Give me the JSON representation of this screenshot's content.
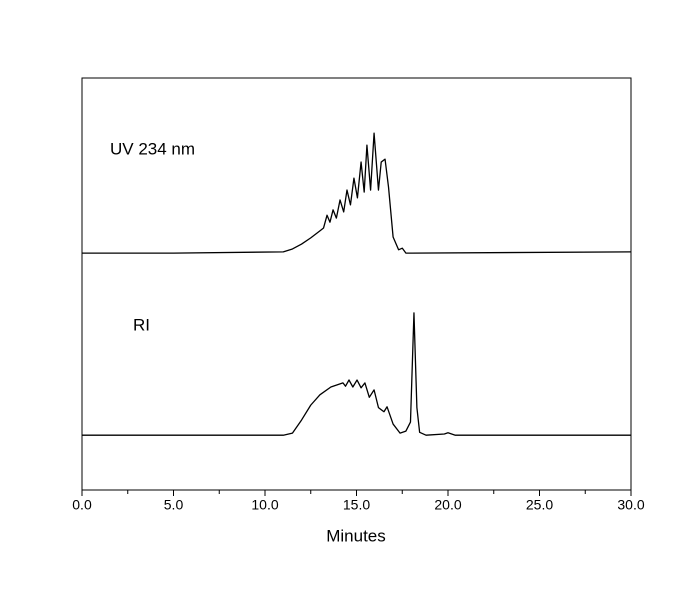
{
  "chart_data": {
    "type": "line",
    "xlabel": "Minutes",
    "xlim": [
      0,
      30
    ],
    "xticks": [
      {
        "value": 0,
        "label": "0.0"
      },
      {
        "value": 5,
        "label": "5.0"
      },
      {
        "value": 10,
        "label": "10.0"
      },
      {
        "value": 15,
        "label": "15.0"
      },
      {
        "value": 20,
        "label": "20.0"
      },
      {
        "value": 25,
        "label": "25.0"
      },
      {
        "value": 30,
        "label": "30.0"
      }
    ],
    "xminorticks": [
      2.5,
      7.5,
      12.5,
      17.5,
      22.5,
      27.5
    ],
    "ylim": [
      0,
      100
    ],
    "series": [
      {
        "name": "UV 234 nm",
        "color": "#000000",
        "x": [
          0,
          5,
          11,
          11.5,
          12,
          12.5,
          13,
          13.2,
          13.39,
          13.55,
          13.72,
          13.9,
          14.1,
          14.3,
          14.48,
          14.67,
          14.86,
          15.05,
          15.25,
          15.42,
          15.57,
          15.77,
          15.96,
          16.2,
          16.35,
          16.56,
          16.75,
          17.0,
          17.3,
          17.5,
          17.7,
          18,
          30
        ],
        "values": [
          57.5,
          57.5,
          57.8,
          58.5,
          59.7,
          61.2,
          62.9,
          63.6,
          66.7,
          65.0,
          68.0,
          66.0,
          70.4,
          67.5,
          72.8,
          69.2,
          75.7,
          70.9,
          79.6,
          72.3,
          83.7,
          72.8,
          86.6,
          72.8,
          79.6,
          80.3,
          73.5,
          61.4,
          58.3,
          58.7,
          57.5,
          57.5,
          57.8
        ]
      },
      {
        "name": "RI",
        "color": "#000000",
        "x": [
          0,
          11,
          11.5,
          12,
          12.5,
          13,
          13.6,
          14.26,
          14.4,
          14.59,
          14.8,
          15.03,
          15.25,
          15.46,
          15.7,
          15.96,
          16.2,
          16.5,
          16.67,
          17.0,
          17.38,
          17.7,
          17.95,
          18.14,
          18.3,
          18.45,
          18.8,
          19.8,
          20.0,
          20.4,
          30
        ],
        "values": [
          13.3,
          13.3,
          13.8,
          17.0,
          20.6,
          23.1,
          25.0,
          26.0,
          25.2,
          26.7,
          25.0,
          26.7,
          24.8,
          26.0,
          22.5,
          24.3,
          20.0,
          19.0,
          20.2,
          16.0,
          13.8,
          14.3,
          16.5,
          43.0,
          20.0,
          14.0,
          13.3,
          13.6,
          13.9,
          13.3,
          13.3
        ]
      }
    ]
  }
}
